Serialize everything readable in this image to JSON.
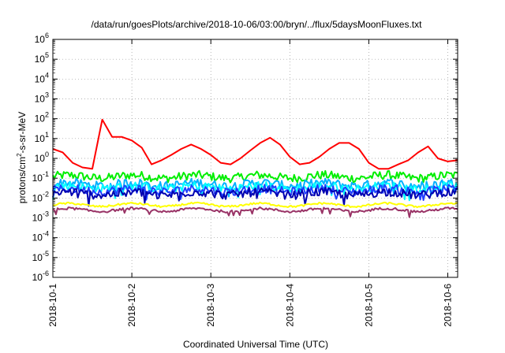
{
  "chart_data": {
    "type": "line",
    "title": "/data/run/goesPlots/archive/2018-10-06/03:00/bryn/../flux/5daysMoonFluxes.txt",
    "xlabel": "Coordinated Universal Time (UTC)",
    "ylabel": {
      "base": "protons/cm",
      "sup": "2",
      "rest": "-s-sr-MeV"
    },
    "x_type": "time",
    "x_range": [
      "2018-10-01T00:00",
      "2018-10-06T03:00"
    ],
    "x_ticks": [
      "2018-10-1",
      "2018-10-2",
      "2018-10-3",
      "2018-10-4",
      "2018-10-5",
      "2018-10-6"
    ],
    "y_scale": "log",
    "y_range": [
      1e-06,
      1000000.0
    ],
    "y_ticks": [
      {
        "value": 1e-06,
        "base": "10",
        "exp": "-6"
      },
      {
        "value": 1e-05,
        "base": "10",
        "exp": "-5"
      },
      {
        "value": 0.0001,
        "base": "10",
        "exp": "-4"
      },
      {
        "value": 0.001,
        "base": "10",
        "exp": "-3"
      },
      {
        "value": 0.01,
        "base": "10",
        "exp": "-2"
      },
      {
        "value": 0.1,
        "base": "10",
        "exp": "-1"
      },
      {
        "value": 1,
        "base": "10",
        "exp": "0"
      },
      {
        "value": 10.0,
        "base": "10",
        "exp": "1"
      },
      {
        "value": 100.0,
        "base": "10",
        "exp": "2"
      },
      {
        "value": 1000.0,
        "base": "10",
        "exp": "3"
      },
      {
        "value": 10000.0,
        "base": "10",
        "exp": "4"
      },
      {
        "value": 100000.0,
        "base": "10",
        "exp": "5"
      },
      {
        "value": 1000000.0,
        "base": "10",
        "exp": "6"
      }
    ],
    "grid": true,
    "legend": "none",
    "series": [
      {
        "color": "#ff0000",
        "x": [
          "2018-10-01T00:00",
          "2018-10-01T03:00",
          "2018-10-01T06:00",
          "2018-10-01T09:00",
          "2018-10-01T12:00",
          "2018-10-01T15:00",
          "2018-10-01T18:00",
          "2018-10-01T21:00",
          "2018-10-02T00:00",
          "2018-10-02T03:00",
          "2018-10-02T06:00",
          "2018-10-02T09:00",
          "2018-10-02T12:00",
          "2018-10-02T15:00",
          "2018-10-02T18:00",
          "2018-10-02T21:00",
          "2018-10-03T00:00",
          "2018-10-03T03:00",
          "2018-10-03T06:00",
          "2018-10-03T09:00",
          "2018-10-03T12:00",
          "2018-10-03T15:00",
          "2018-10-03T18:00",
          "2018-10-03T21:00",
          "2018-10-04T00:00",
          "2018-10-04T03:00",
          "2018-10-04T06:00",
          "2018-10-04T09:00",
          "2018-10-04T12:00",
          "2018-10-04T15:00",
          "2018-10-04T18:00",
          "2018-10-04T21:00",
          "2018-10-05T00:00",
          "2018-10-05T03:00",
          "2018-10-05T06:00",
          "2018-10-05T09:00",
          "2018-10-05T12:00",
          "2018-10-05T15:00",
          "2018-10-05T18:00",
          "2018-10-05T21:00",
          "2018-10-06T00:00",
          "2018-10-06T03:00"
        ],
        "values": [
          3.0,
          2.0,
          0.6,
          0.35,
          0.3,
          90,
          12,
          12,
          8,
          3.5,
          0.5,
          0.8,
          1.5,
          3,
          5,
          3,
          1.5,
          0.6,
          0.5,
          1,
          2.5,
          6,
          11,
          5,
          1.2,
          0.5,
          0.6,
          1.2,
          3,
          6,
          6,
          3,
          0.6,
          0.3,
          0.3,
          0.5,
          0.8,
          2,
          4,
          1,
          0.7,
          0.8
        ]
      },
      {
        "color": "#00ee00",
        "baseline": 0.12
      },
      {
        "color": "#00b0ff",
        "baseline": 0.05
      },
      {
        "color": "#00ffff",
        "baseline": 0.035
      },
      {
        "color": "#2040ff",
        "baseline": 0.025
      },
      {
        "color": "#0000b0",
        "baseline": 0.017
      },
      {
        "color": "#ffff00",
        "baseline": 0.0045
      },
      {
        "color": "#993366",
        "baseline": 0.0025
      }
    ]
  }
}
